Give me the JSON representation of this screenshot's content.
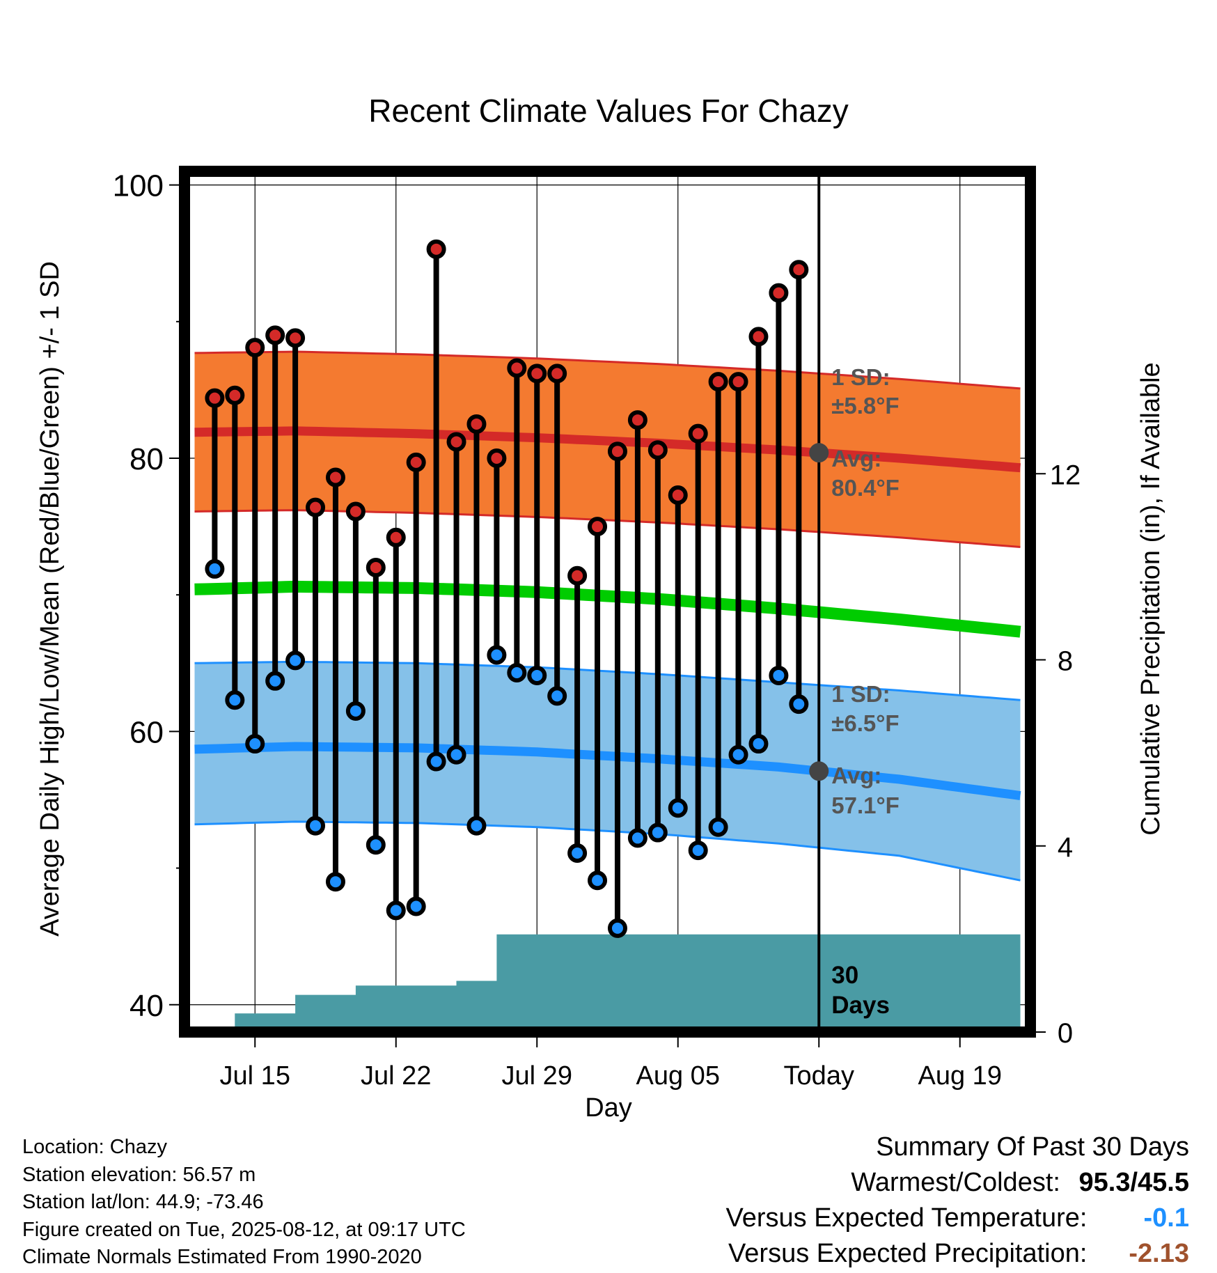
{
  "chart_data": {
    "type": "line",
    "title": "Recent Climate Values For Chazy",
    "xlabel": "Day",
    "ylabel": "Average Daily High/Low/Mean (Red/Blue/Green) +/- 1 SD",
    "y2label": "Cumulative Precipitation (in), If Available",
    "ylim": [
      38,
      101
    ],
    "y2lim": [
      0,
      18.5
    ],
    "yticks": [
      40,
      60,
      80,
      100
    ],
    "y2ticks": [
      0,
      4,
      8,
      12
    ],
    "xlim": [
      -1.5,
      40.5
    ],
    "xtick_labels": [
      {
        "day": 2,
        "label": "Jul 15"
      },
      {
        "day": 9,
        "label": "Jul 22"
      },
      {
        "day": 16,
        "label": "Jul 29"
      },
      {
        "day": 23,
        "label": "Aug 05"
      },
      {
        "day": 30,
        "label": "Today"
      },
      {
        "day": 37,
        "label": "Aug 19"
      }
    ],
    "days": [
      0,
      1,
      2,
      3,
      4,
      5,
      6,
      7,
      8,
      9,
      10,
      11,
      12,
      13,
      14,
      15,
      16,
      17,
      18,
      19,
      20,
      21,
      22,
      23,
      24,
      25,
      26,
      27,
      28,
      29
    ],
    "daily_high": [
      84.4,
      84.6,
      88.1,
      89.0,
      88.8,
      76.4,
      78.6,
      76.1,
      72.0,
      74.2,
      79.7,
      95.3,
      81.2,
      82.5,
      80.0,
      86.6,
      86.2,
      86.2,
      71.4,
      75.0,
      80.5,
      82.8,
      80.6,
      77.3,
      81.8,
      85.6,
      85.6,
      88.9,
      92.1,
      93.8
    ],
    "daily_low": [
      71.9,
      62.3,
      59.1,
      63.7,
      65.2,
      53.1,
      49.0,
      61.5,
      51.7,
      46.9,
      47.2,
      57.8,
      58.3,
      53.1,
      65.6,
      64.3,
      64.1,
      62.6,
      51.1,
      49.1,
      45.6,
      52.2,
      52.6,
      54.4,
      51.3,
      53.0,
      58.3,
      59.1,
      64.1,
      62.0
    ],
    "normal_high_day": [
      -1,
      4,
      10,
      16,
      22,
      28,
      34,
      40
    ],
    "normal_high": [
      81.9,
      82.0,
      81.8,
      81.5,
      81.1,
      80.6,
      80.0,
      79.3
    ],
    "normal_high_sd": 5.8,
    "normal_low_day": [
      -1,
      4,
      10,
      16,
      22,
      28,
      34,
      40
    ],
    "normal_low": [
      58.7,
      58.9,
      58.8,
      58.5,
      58.0,
      57.4,
      56.5,
      55.3
    ],
    "normal_low_sd_lower": [
      53.2,
      53.4,
      53.3,
      53.0,
      52.5,
      51.8,
      50.9,
      49.1
    ],
    "normal_low_sd_upper": [
      65.0,
      65.1,
      65.0,
      64.7,
      64.2,
      63.6,
      63.0,
      62.3
    ],
    "normal_mean_day": [
      -1,
      4,
      10,
      16,
      22,
      28,
      34,
      40
    ],
    "normal_mean": [
      70.4,
      70.6,
      70.5,
      70.2,
      69.7,
      69.0,
      68.2,
      67.3
    ],
    "precip_day": [
      -1,
      0,
      1,
      2,
      3,
      4,
      5,
      6,
      7,
      8,
      9,
      10,
      11,
      12,
      13,
      14,
      15,
      40
    ],
    "precip_cum": [
      0.0,
      0.1,
      0.4,
      0.4,
      0.4,
      0.8,
      0.8,
      0.8,
      1.0,
      1.0,
      1.0,
      1.0,
      1.0,
      1.1,
      1.1,
      2.1,
      2.1,
      2.1
    ],
    "annotations": {
      "high_sd_line1": "1 SD:",
      "high_sd_line2": "±5.8°F",
      "high_avg_line1": "Avg:",
      "high_avg_line2": "80.4°F",
      "low_sd_line1": "1 SD:",
      "low_sd_line2": "±6.5°F",
      "low_avg_line1": "Avg:",
      "low_avg_line2": "57.1°F",
      "precip_line1": "30",
      "precip_line2": "Days"
    },
    "colors": {
      "high_band": "#f47a30",
      "high_line": "#d42a28",
      "low_band": "#85c1e9",
      "low_line": "#1e90ff",
      "mean_line": "#00cc00",
      "precip": "#4a9ba4",
      "high_dot": "#d42a28",
      "low_dot": "#1e90ff",
      "annotation_text": "#555555"
    }
  },
  "footer": {
    "location": "Location: Chazy",
    "elevation": "Station elevation: 56.57 m",
    "latlon": "Station lat/lon: 44.9; -73.46",
    "created": "Figure created on Tue, 2025-08-12, at 09:17 UTC",
    "normals": "Climate Normals Estimated From 1990-2020"
  },
  "summary": {
    "title": "Summary Of Past 30 Days",
    "warmest_label": "Warmest/Coldest:",
    "warmest_value": "95.3/45.5",
    "temp_label": "Versus Expected Temperature:",
    "temp_value": "-0.1",
    "temp_color": "#1e90ff",
    "precip_label": "Versus Expected Precipitation:",
    "precip_value": "-2.13",
    "precip_color": "#a0522d"
  }
}
